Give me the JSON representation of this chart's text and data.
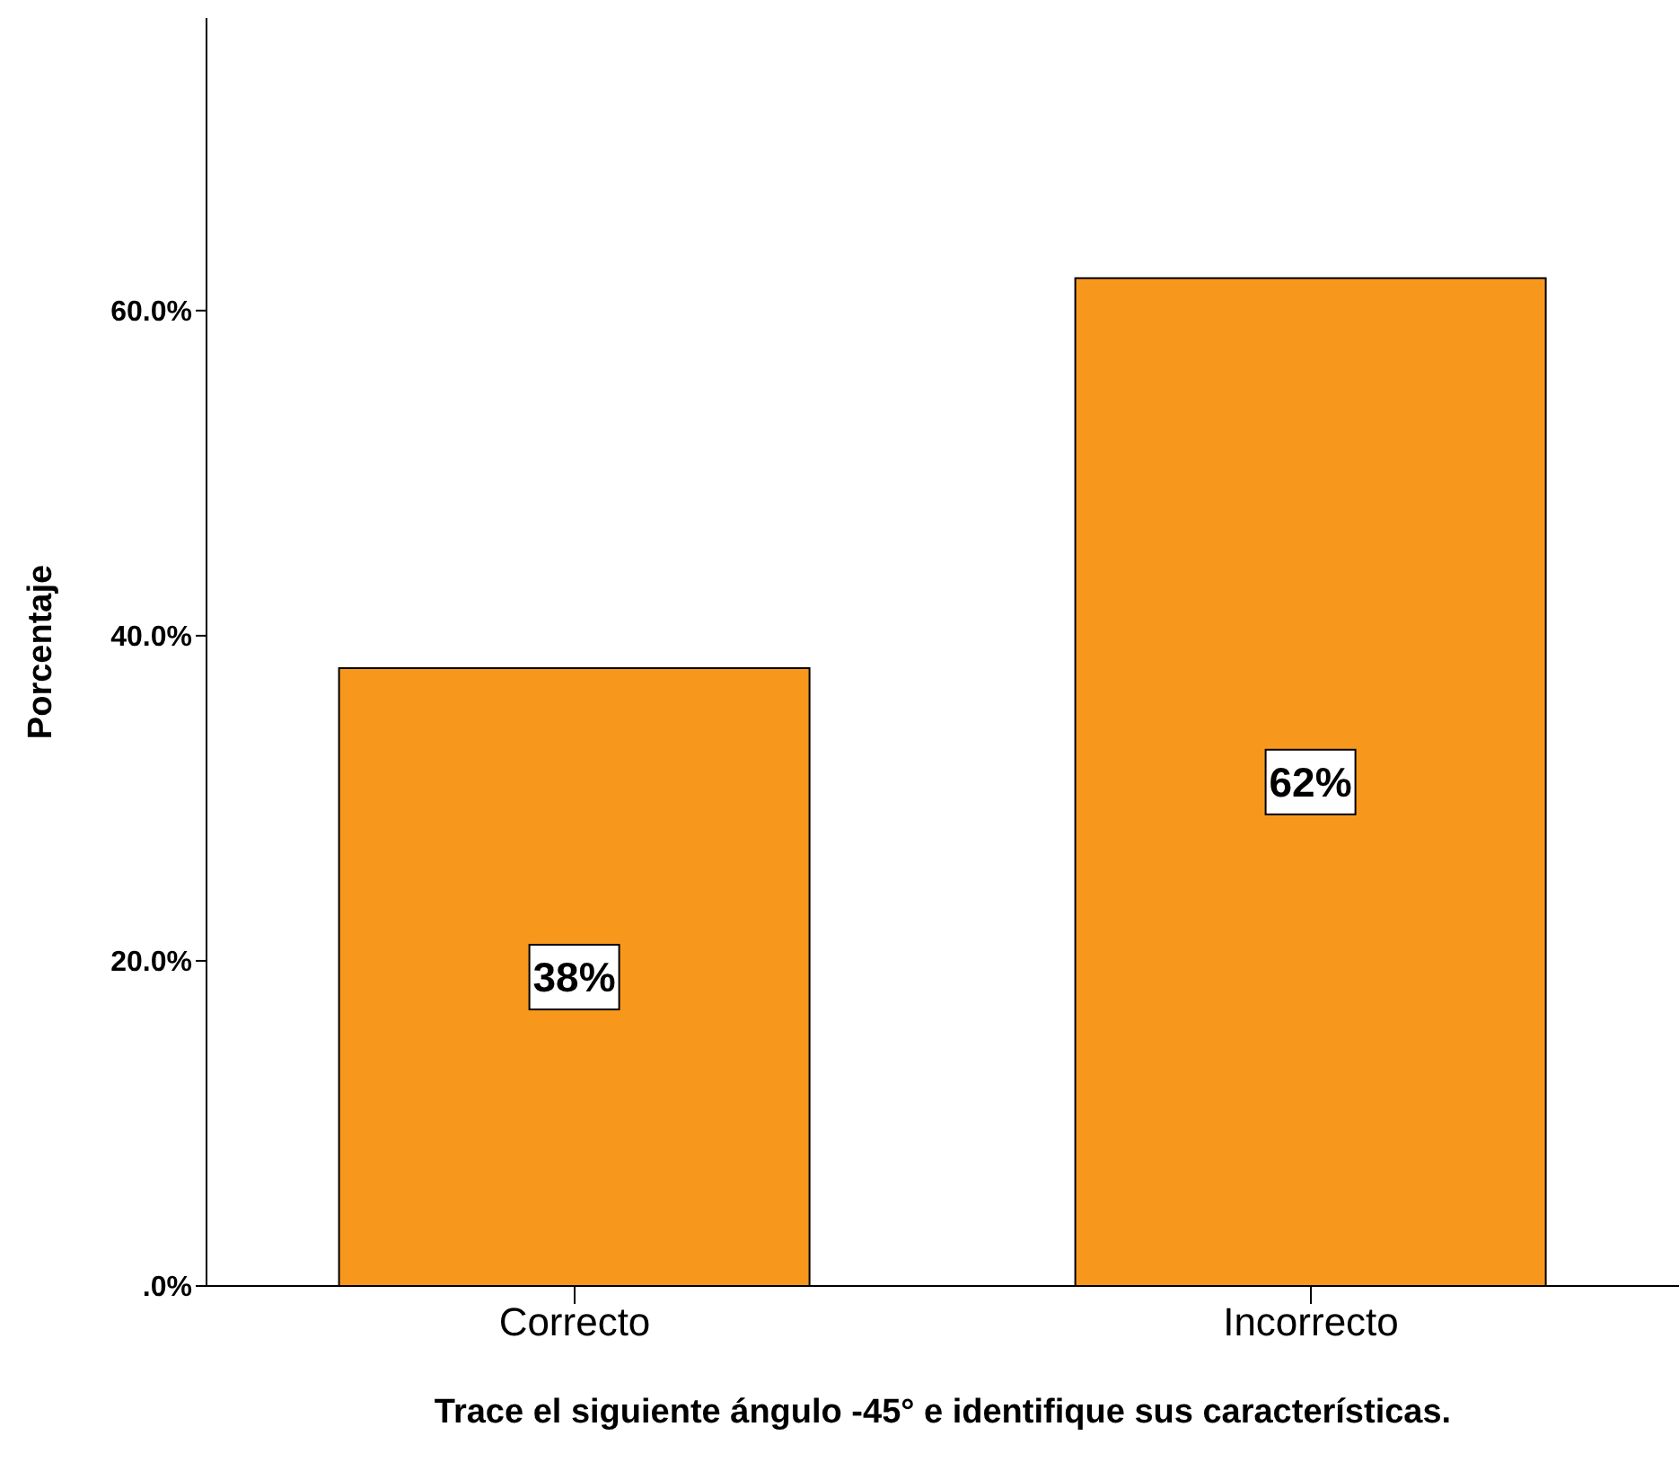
{
  "chart_data": {
    "type": "bar",
    "xlabel": "Trace el siguiente ángulo -45° e identifique sus características.",
    "ylabel": "Porcentaje",
    "categories": [
      "Correcto",
      "Incorrecto"
    ],
    "values": [
      38,
      62
    ],
    "color": "#f7981d",
    "value_labels": [
      "38%",
      "62%"
    ],
    "ylim": [
      0,
      78
    ],
    "yticks": [
      {
        "value": 0,
        "label": ".0%"
      },
      {
        "value": 20,
        "label": "20.0%"
      },
      {
        "value": 40,
        "label": "40.0%"
      },
      {
        "value": 60,
        "label": "60.0%"
      }
    ],
    "grid": false
  }
}
